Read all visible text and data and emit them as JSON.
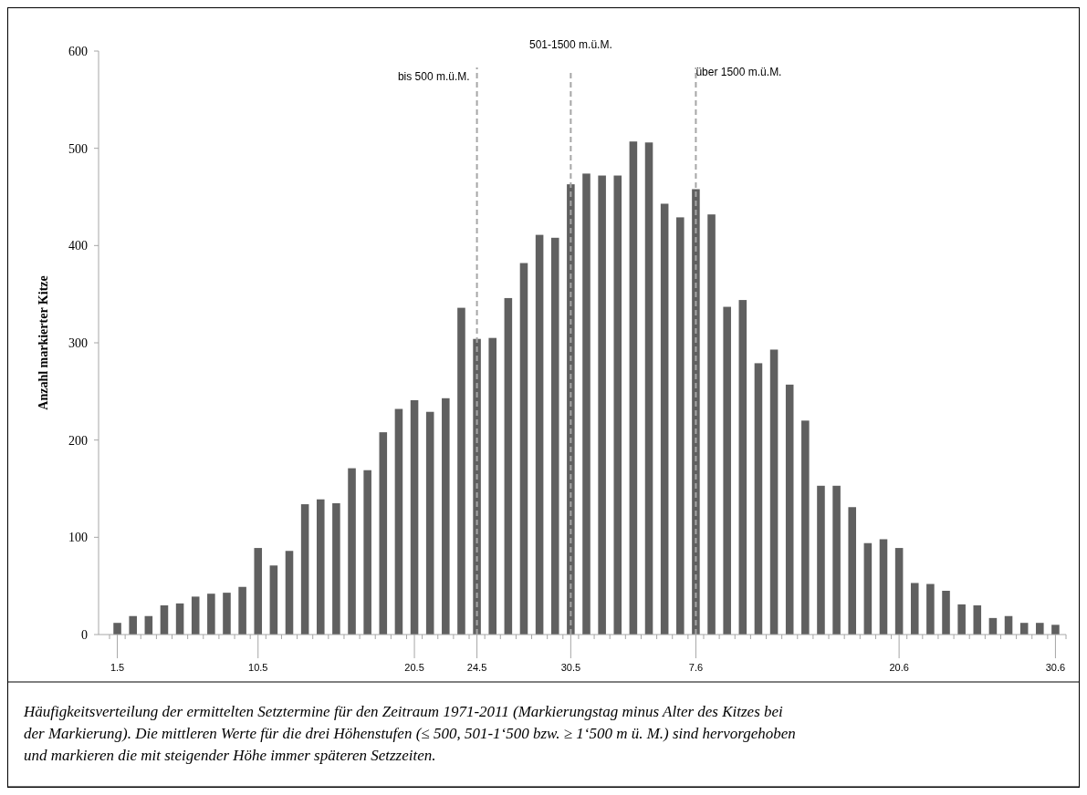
{
  "chart_data": {
    "type": "bar",
    "ylabel": "Anzahl markierter Kitze",
    "categories": [
      "1.5",
      null,
      null,
      null,
      null,
      null,
      null,
      null,
      null,
      "10.5",
      null,
      null,
      null,
      null,
      null,
      null,
      null,
      null,
      null,
      "20.5",
      null,
      null,
      null,
      "24.5",
      null,
      null,
      null,
      null,
      null,
      "30.5",
      null,
      null,
      null,
      null,
      null,
      null,
      null,
      "7.6",
      null,
      null,
      null,
      null,
      null,
      null,
      null,
      null,
      null,
      null,
      null,
      null,
      "20.6",
      null,
      null,
      null,
      null,
      null,
      null,
      null,
      null,
      null,
      "30.6"
    ],
    "values": [
      12,
      19,
      19,
      30,
      32,
      39,
      42,
      43,
      49,
      89,
      71,
      86,
      134,
      139,
      135,
      171,
      169,
      208,
      232,
      241,
      229,
      243,
      336,
      304,
      305,
      346,
      382,
      411,
      408,
      463,
      474,
      472,
      472,
      507,
      506,
      443,
      429,
      458,
      432,
      337,
      344,
      279,
      293,
      257,
      220,
      153,
      153,
      131,
      94,
      98,
      89,
      53,
      52,
      45,
      31,
      30,
      17,
      19,
      12,
      12,
      10
    ],
    "color": "#606060",
    "ylim": [
      0,
      600
    ],
    "yticks": [
      0,
      100,
      200,
      300,
      400,
      500,
      600
    ],
    "grid": false,
    "ref_lines": [
      {
        "axis": "x",
        "value": "24.5",
        "label": "bis 500 m.ü.M.",
        "color": "#a6a6a6",
        "line_style": "dashed"
      },
      {
        "axis": "x",
        "value": "30.5",
        "label": "501-1500 m.ü.M.",
        "color": "#a6a6a6",
        "line_style": "dashed"
      },
      {
        "axis": "x",
        "value": "7.6",
        "label": "über 1500 m.ü.M.",
        "color": "#a6a6a6",
        "line_style": "dashed"
      }
    ],
    "annotations": [
      "Häufigkeitsverteilung der ermittelten Setztermine für den Zeitraum 1971-2011 (Markierungstag minus Alter des Kitzes bei der Markierung). Die mittleren Werte für die drei Höhenstufen (≤ 500, 501-1‘500 bzw. ≥ 1‘500 m ü. M.) sind hervorgehoben und markieren die mit steigender Höhe immer späteren Setzzeiten."
    ]
  }
}
